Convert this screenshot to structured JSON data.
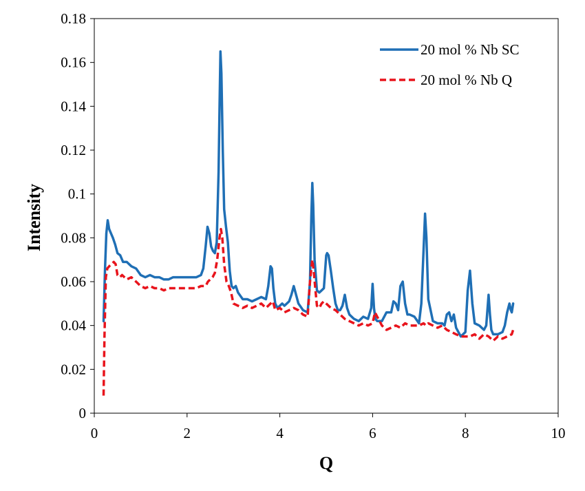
{
  "chart_data": {
    "type": "line",
    "title": "",
    "xlabel": "Q",
    "ylabel": "Intensity",
    "xlim": [
      0,
      10
    ],
    "ylim": [
      0,
      0.18
    ],
    "xticks": [
      0,
      2,
      4,
      6,
      8,
      10
    ],
    "yticks": [
      0,
      0.02,
      0.04,
      0.06,
      0.08,
      0.1,
      0.12,
      0.14,
      0.16,
      0.18
    ],
    "xtick_labels": [
      "0",
      "2",
      "4",
      "6",
      "8",
      "10"
    ],
    "ytick_labels": [
      "0",
      "0.02",
      "0.04",
      "0.06",
      "0.08",
      "0.1",
      "0.12",
      "0.14",
      "0.16",
      "0.18"
    ],
    "grid": false,
    "legend_position": "top-right",
    "series": [
      {
        "name": "20 mol % Nb SC",
        "color": "#1f6fb5",
        "style": "solid",
        "x": [
          0.2,
          0.23,
          0.26,
          0.29,
          0.32,
          0.36,
          0.4,
          0.45,
          0.5,
          0.56,
          0.62,
          0.7,
          0.8,
          0.9,
          1.0,
          1.1,
          1.2,
          1.3,
          1.4,
          1.5,
          1.6,
          1.7,
          1.8,
          1.9,
          2.0,
          2.1,
          2.2,
          2.3,
          2.35,
          2.4,
          2.44,
          2.48,
          2.52,
          2.56,
          2.6,
          2.64,
          2.68,
          2.7,
          2.72,
          2.74,
          2.77,
          2.8,
          2.84,
          2.88,
          2.92,
          2.96,
          3.0,
          3.05,
          3.1,
          3.2,
          3.3,
          3.4,
          3.5,
          3.6,
          3.7,
          3.75,
          3.8,
          3.83,
          3.86,
          3.9,
          3.95,
          4.0,
          4.05,
          4.1,
          4.2,
          4.25,
          4.3,
          4.35,
          4.4,
          4.5,
          4.6,
          4.65,
          4.68,
          4.7,
          4.72,
          4.75,
          4.8,
          4.85,
          4.9,
          4.95,
          5.0,
          5.02,
          5.05,
          5.1,
          5.15,
          5.2,
          5.25,
          5.3,
          5.35,
          5.4,
          5.45,
          5.5,
          5.6,
          5.7,
          5.8,
          5.9,
          5.97,
          6.0,
          6.03,
          6.06,
          6.1,
          6.2,
          6.3,
          6.4,
          6.45,
          6.5,
          6.55,
          6.6,
          6.65,
          6.7,
          6.75,
          6.8,
          6.9,
          7.0,
          7.05,
          7.1,
          7.13,
          7.16,
          7.2,
          7.3,
          7.4,
          7.5,
          7.55,
          7.6,
          7.65,
          7.7,
          7.75,
          7.8,
          7.9,
          8.0,
          8.05,
          8.1,
          8.15,
          8.2,
          8.3,
          8.4,
          8.45,
          8.5,
          8.53,
          8.56,
          8.6,
          8.7,
          8.8,
          8.85,
          8.9,
          8.95,
          8.98,
          9.0,
          9.03
        ],
        "y": [
          0.042,
          0.065,
          0.082,
          0.088,
          0.084,
          0.082,
          0.08,
          0.077,
          0.073,
          0.072,
          0.069,
          0.069,
          0.067,
          0.066,
          0.063,
          0.062,
          0.063,
          0.062,
          0.062,
          0.061,
          0.061,
          0.062,
          0.062,
          0.062,
          0.062,
          0.062,
          0.062,
          0.063,
          0.066,
          0.076,
          0.085,
          0.082,
          0.076,
          0.074,
          0.073,
          0.078,
          0.11,
          0.14,
          0.165,
          0.155,
          0.12,
          0.093,
          0.085,
          0.078,
          0.065,
          0.058,
          0.057,
          0.058,
          0.055,
          0.052,
          0.052,
          0.051,
          0.052,
          0.053,
          0.052,
          0.058,
          0.067,
          0.066,
          0.057,
          0.05,
          0.048,
          0.049,
          0.05,
          0.049,
          0.051,
          0.054,
          0.058,
          0.054,
          0.05,
          0.047,
          0.046,
          0.06,
          0.09,
          0.105,
          0.095,
          0.07,
          0.056,
          0.055,
          0.056,
          0.057,
          0.072,
          0.073,
          0.072,
          0.065,
          0.057,
          0.05,
          0.047,
          0.047,
          0.049,
          0.054,
          0.048,
          0.045,
          0.043,
          0.042,
          0.044,
          0.043,
          0.048,
          0.059,
          0.048,
          0.043,
          0.042,
          0.042,
          0.046,
          0.046,
          0.051,
          0.05,
          0.047,
          0.058,
          0.06,
          0.05,
          0.045,
          0.045,
          0.044,
          0.041,
          0.05,
          0.075,
          0.091,
          0.08,
          0.052,
          0.042,
          0.041,
          0.041,
          0.04,
          0.045,
          0.046,
          0.042,
          0.045,
          0.039,
          0.035,
          0.037,
          0.056,
          0.065,
          0.05,
          0.041,
          0.04,
          0.038,
          0.04,
          0.054,
          0.045,
          0.038,
          0.036,
          0.036,
          0.037,
          0.04,
          0.046,
          0.05,
          0.047,
          0.046,
          0.05
        ]
      },
      {
        "name": "20 mol % Nb Q",
        "color": "#e8141c",
        "style": "dashed",
        "x": [
          0.2,
          0.22,
          0.25,
          0.28,
          0.32,
          0.37,
          0.42,
          0.46,
          0.5,
          0.55,
          0.6,
          0.7,
          0.8,
          0.9,
          1.0,
          1.1,
          1.2,
          1.3,
          1.4,
          1.5,
          1.6,
          1.7,
          1.8,
          1.9,
          2.0,
          2.1,
          2.2,
          2.3,
          2.4,
          2.45,
          2.5,
          2.55,
          2.6,
          2.65,
          2.7,
          2.73,
          2.76,
          2.8,
          2.85,
          2.9,
          2.95,
          3.0,
          3.1,
          3.2,
          3.3,
          3.4,
          3.5,
          3.6,
          3.7,
          3.8,
          3.85,
          3.9,
          4.0,
          4.1,
          4.2,
          4.3,
          4.4,
          4.5,
          4.6,
          4.65,
          4.7,
          4.73,
          4.76,
          4.8,
          4.85,
          4.9,
          4.95,
          5.0,
          5.05,
          5.1,
          5.2,
          5.3,
          5.4,
          5.5,
          5.6,
          5.7,
          5.8,
          5.9,
          6.0,
          6.05,
          6.1,
          6.2,
          6.3,
          6.4,
          6.5,
          6.6,
          6.7,
          6.8,
          6.9,
          7.0,
          7.1,
          7.15,
          7.2,
          7.3,
          7.4,
          7.5,
          7.6,
          7.7,
          7.8,
          7.9,
          8.0,
          8.1,
          8.2,
          8.3,
          8.4,
          8.5,
          8.6,
          8.7,
          8.8,
          8.9,
          9.0,
          9.03
        ],
        "y": [
          0.008,
          0.035,
          0.062,
          0.066,
          0.067,
          0.068,
          0.069,
          0.068,
          0.063,
          0.062,
          0.063,
          0.061,
          0.062,
          0.06,
          0.058,
          0.057,
          0.058,
          0.057,
          0.057,
          0.056,
          0.057,
          0.057,
          0.057,
          0.057,
          0.057,
          0.057,
          0.057,
          0.058,
          0.058,
          0.06,
          0.061,
          0.062,
          0.064,
          0.07,
          0.08,
          0.084,
          0.08,
          0.068,
          0.06,
          0.058,
          0.055,
          0.05,
          0.049,
          0.048,
          0.049,
          0.048,
          0.049,
          0.05,
          0.048,
          0.05,
          0.051,
          0.047,
          0.048,
          0.046,
          0.047,
          0.048,
          0.047,
          0.045,
          0.044,
          0.06,
          0.07,
          0.065,
          0.058,
          0.049,
          0.048,
          0.05,
          0.051,
          0.05,
          0.049,
          0.048,
          0.047,
          0.045,
          0.043,
          0.042,
          0.041,
          0.04,
          0.041,
          0.04,
          0.041,
          0.046,
          0.044,
          0.04,
          0.038,
          0.039,
          0.04,
          0.039,
          0.041,
          0.04,
          0.04,
          0.04,
          0.041,
          0.04,
          0.041,
          0.04,
          0.039,
          0.04,
          0.038,
          0.037,
          0.036,
          0.035,
          0.035,
          0.035,
          0.036,
          0.034,
          0.036,
          0.035,
          0.033,
          0.035,
          0.034,
          0.035,
          0.036,
          0.038
        ]
      }
    ]
  }
}
